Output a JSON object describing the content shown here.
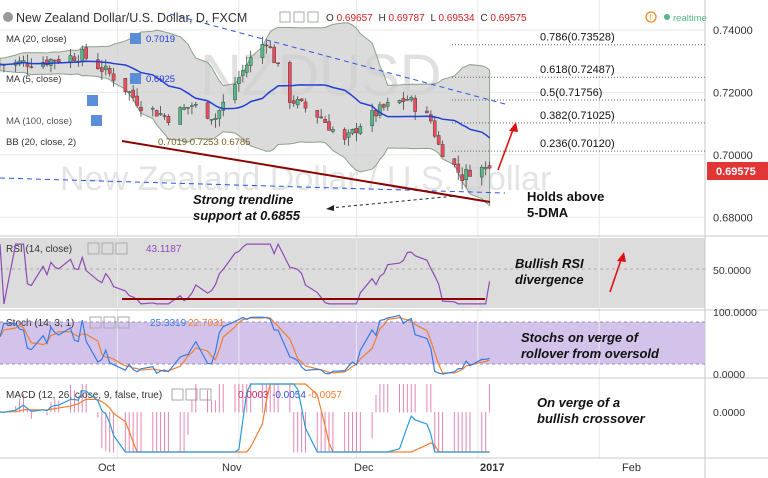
{
  "header": {
    "title": "New Zealand Dollar/U.S. Dollar, D, FXCM",
    "ohlc": {
      "o_label": "O",
      "o": "0.69657",
      "h_label": "H",
      "h": "0.69787",
      "l_label": "L",
      "l": "0.69534",
      "c_label": "C",
      "c": "0.69575"
    },
    "realtime_label": "realtime",
    "last_price": "0.69575"
  },
  "indicator_labels": {
    "ma20": "MA (20, close)",
    "ma20_value": "0.7019",
    "ma": "MA (5, close)",
    "ma_value": "0.6925",
    "ma100": "MA (100, close)",
    "bb": "BB (20, close, 2)",
    "bb_values": "0.7019  0.7253  0.6785",
    "rsi": "RSI (14, close)",
    "rsi_value": "43.1187",
    "stoch": "Stoch (14, 3, 1)",
    "stoch_k": "25.3319",
    "stoch_d": "22.7031",
    "macd": "MACD (12, 26, close, 9, false, true)",
    "macd_hist": "0.0003",
    "macd_line": "-0.0054",
    "macd_signal": "-0.0057"
  },
  "price_axis": [
    "0.74000",
    "0.72000",
    "0.70000",
    "0.68000"
  ],
  "rsi_axis": [
    "50.0000"
  ],
  "stoch_axis": [
    "100.0000",
    "0.0000"
  ],
  "macd_axis": [
    "0.0000"
  ],
  "x_axis": [
    "Oct",
    "Nov",
    "Dec",
    "2017",
    "Feb"
  ],
  "fib_levels": [
    {
      "label": "0.786(0.73528)",
      "value": 0.73528
    },
    {
      "label": "0.618(0.72487)",
      "value": 0.72487
    },
    {
      "label": "0.5(0.71756)",
      "value": 0.71756
    },
    {
      "label": "0.382(0.71025)",
      "value": 0.71025
    },
    {
      "label": "0.236(0.70120)",
      "value": 0.7012
    }
  ],
  "annotations": {
    "trendline": "Strong trendline\nsupport at 0.6855",
    "five_dma": "Holds above\n5-DMA",
    "rsi": "Bullish RSI\ndivergence",
    "stoch": "Stochs on verge of\nrollover from oversold",
    "macd": "On verge of a\nbullish crossover"
  },
  "colors": {
    "up": "#53b987",
    "down": "#eb4d5c",
    "ma": "#1f3fd6",
    "bb_fill": "#cfcfcf",
    "trendline": "#8b0000",
    "rsi": "#8e4bb6",
    "stoch_k": "#3a7be0",
    "stoch_d": "#f08030",
    "accent": "#e01010",
    "panel_fill": "#d3c3ea"
  },
  "chart_data": {
    "type": "candlestick",
    "symbol": "NZDUSD",
    "timeframe": "D",
    "x_range": [
      "2016-09-01",
      "2017-02-28"
    ],
    "ylim": [
      0.674,
      0.748
    ],
    "last_bar": {
      "open": 0.69657,
      "high": 0.69787,
      "low": 0.69534,
      "close": 0.69575
    },
    "close_path": [
      {
        "date": "2016-09-01",
        "close": 0.729
      },
      {
        "date": "2016-09-12",
        "close": 0.73
      },
      {
        "date": "2016-09-22",
        "close": 0.732
      },
      {
        "date": "2016-09-30",
        "close": 0.725
      },
      {
        "date": "2016-10-07",
        "close": 0.716
      },
      {
        "date": "2016-10-14",
        "close": 0.712
      },
      {
        "date": "2016-10-20",
        "close": 0.716
      },
      {
        "date": "2016-10-26",
        "close": 0.712
      },
      {
        "date": "2016-11-03",
        "close": 0.729
      },
      {
        "date": "2016-11-08",
        "close": 0.737
      },
      {
        "date": "2016-11-14",
        "close": 0.718
      },
      {
        "date": "2016-11-22",
        "close": 0.712
      },
      {
        "date": "2016-11-28",
        "close": 0.704
      },
      {
        "date": "2016-12-02",
        "close": 0.71
      },
      {
        "date": "2016-12-08",
        "close": 0.715
      },
      {
        "date": "2016-12-14",
        "close": 0.718
      },
      {
        "date": "2016-12-20",
        "close": 0.711
      },
      {
        "date": "2016-12-22",
        "close": 0.703
      },
      {
        "date": "2016-12-28",
        "close": 0.693
      },
      {
        "date": "2016-12-30",
        "close": 0.695
      },
      {
        "date": "2017-01-04",
        "close": 0.6958
      }
    ],
    "fib_levels": [
      0.73528,
      0.72487,
      0.71756,
      0.71025,
      0.7012
    ],
    "trendline_support": 0.6855,
    "rsi_last": 43.1187,
    "stoch_last": {
      "k": 25.3319,
      "d": 22.7031
    },
    "macd_last": {
      "histogram": 0.0003,
      "macd": -0.0054,
      "signal": -0.0057
    }
  }
}
